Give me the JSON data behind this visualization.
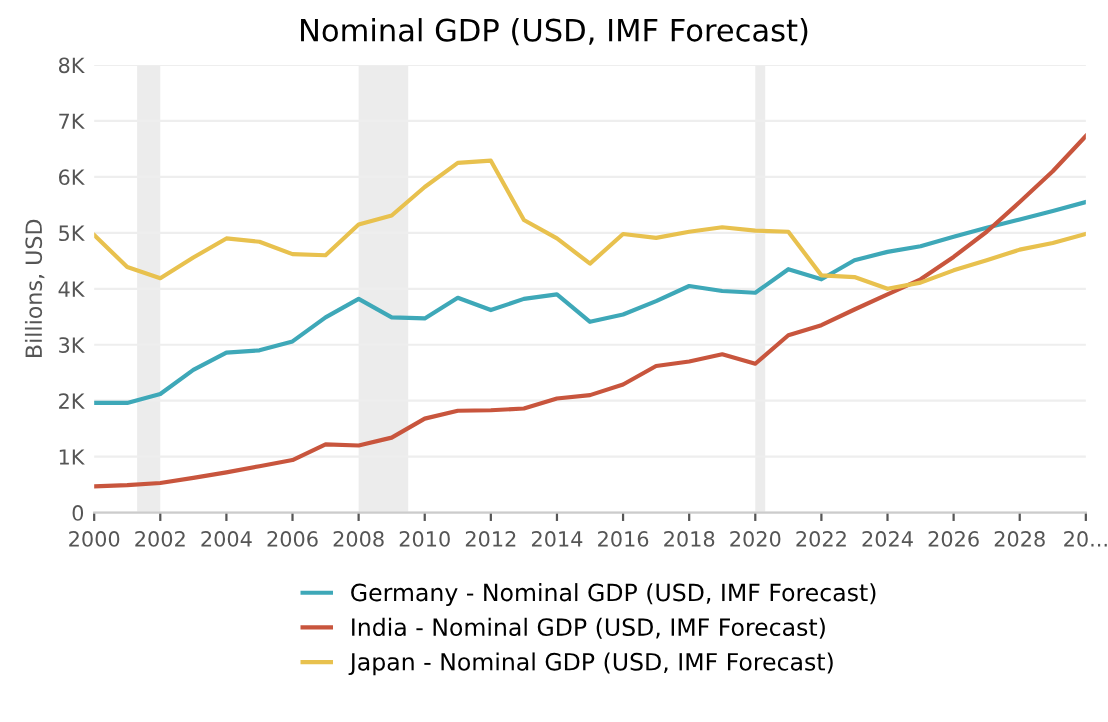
{
  "chart_data": {
    "type": "line",
    "title": "Nominal GDP (USD, IMF Forecast)",
    "ylabel": "Billions, USD",
    "x": [
      2000,
      2001,
      2002,
      2003,
      2004,
      2005,
      2006,
      2007,
      2008,
      2009,
      2010,
      2011,
      2012,
      2013,
      2014,
      2015,
      2016,
      2017,
      2018,
      2019,
      2020,
      2021,
      2022,
      2023,
      2024,
      2025,
      2026,
      2027,
      2028,
      2029,
      2030
    ],
    "series": [
      {
        "name": "Germany - Nominal GDP (USD, IMF Forecast)",
        "color": "#3ea8b8",
        "values": [
          1960,
          1960,
          2120,
          2550,
          2860,
          2900,
          3060,
          3490,
          3820,
          3490,
          3470,
          3840,
          3620,
          3820,
          3900,
          3410,
          3540,
          3780,
          4050,
          3960,
          3930,
          4350,
          4170,
          4510,
          4660,
          4760,
          4930,
          5090,
          5240,
          5390,
          5550
        ]
      },
      {
        "name": "India - Nominal GDP (USD, IMF Forecast)",
        "color": "#c8553d",
        "values": [
          470,
          490,
          530,
          620,
          720,
          830,
          940,
          1220,
          1200,
          1340,
          1680,
          1820,
          1830,
          1860,
          2040,
          2100,
          2290,
          2620,
          2700,
          2830,
          2660,
          3170,
          3350,
          3630,
          3900,
          4170,
          4570,
          5020,
          5550,
          6100,
          6730
        ]
      },
      {
        "name": "Japan - Nominal GDP (USD, IMF Forecast)",
        "color": "#e8c14e",
        "values": [
          4960,
          4390,
          4190,
          4560,
          4900,
          4840,
          4620,
          4600,
          5150,
          5310,
          5820,
          6250,
          6290,
          5230,
          4900,
          4450,
          4980,
          4910,
          5020,
          5100,
          5040,
          5020,
          4240,
          4210,
          4000,
          4110,
          4330,
          4510,
          4700,
          4820,
          4980
        ]
      }
    ],
    "xlim": [
      2000,
      2030
    ],
    "xticks": [
      2000,
      2002,
      2004,
      2006,
      2008,
      2010,
      2012,
      2014,
      2016,
      2018,
      2020,
      2022,
      2024,
      2026,
      2028,
      {
        "value": 2030,
        "label": "20..."
      }
    ],
    "ylim": [
      0,
      8000
    ],
    "yticks": [
      0,
      {
        "value": 1000,
        "label": "1K"
      },
      {
        "value": 2000,
        "label": "2K"
      },
      {
        "value": 3000,
        "label": "3K"
      },
      {
        "value": 4000,
        "label": "4K"
      },
      {
        "value": 5000,
        "label": "5K"
      },
      {
        "value": 6000,
        "label": "6K"
      },
      {
        "value": 7000,
        "label": "7K"
      },
      {
        "value": 8000,
        "label": "8K"
      }
    ],
    "bands": [
      {
        "axis": "x",
        "from": 2001.3,
        "to": 2002.0,
        "color": "#ececec"
      },
      {
        "axis": "x",
        "from": 2008.0,
        "to": 2009.5,
        "color": "#ececec"
      },
      {
        "axis": "x",
        "from": 2020.0,
        "to": 2020.3,
        "color": "#ececec"
      }
    ],
    "grid": "y",
    "legend": "bottom",
    "marker": "none",
    "line_style": "solid"
  }
}
